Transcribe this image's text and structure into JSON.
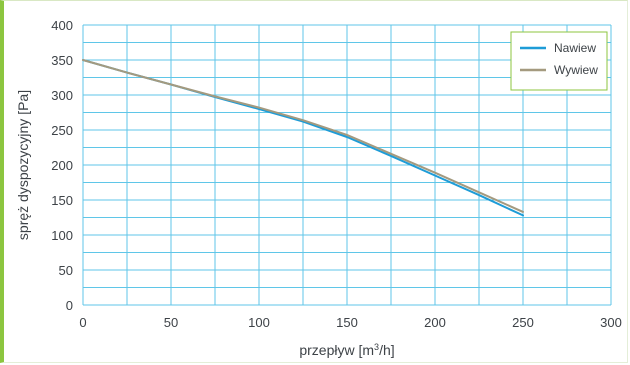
{
  "chart_data": {
    "type": "line",
    "xlabel_parts": [
      "przepływ [m",
      "3",
      "/h]"
    ],
    "ylabel": "spręż dyspozycyjny  [Pa]",
    "xlim": [
      0,
      300
    ],
    "ylim": [
      0,
      400
    ],
    "x_ticks": [
      0,
      50,
      100,
      150,
      200,
      250,
      300
    ],
    "y_ticks": [
      0,
      50,
      100,
      150,
      200,
      250,
      300,
      350,
      400
    ],
    "x_grid_step": 25,
    "y_grid_step": 25,
    "grid": true,
    "legend_position": "top-right",
    "series": [
      {
        "name": "Nawiew",
        "color": "#1e9cd7",
        "x": [
          0,
          25,
          50,
          75,
          100,
          125,
          150,
          175,
          200,
          225,
          250
        ],
        "y": [
          350,
          332,
          315,
          297,
          280,
          262,
          240,
          213,
          185,
          157,
          128
        ]
      },
      {
        "name": "Wywiew",
        "color": "#a49a7f",
        "x": [
          0,
          25,
          50,
          75,
          100,
          125,
          150,
          175,
          200,
          225,
          250
        ],
        "y": [
          350,
          332,
          315,
          298,
          282,
          264,
          243,
          216,
          189,
          161,
          133
        ]
      }
    ]
  }
}
